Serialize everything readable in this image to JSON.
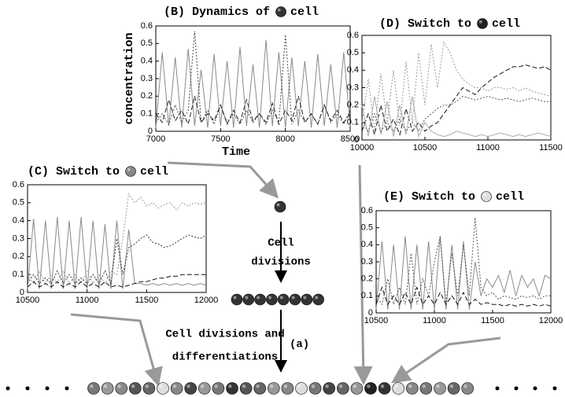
{
  "chart_data": [
    {
      "type": "line",
      "title": [
        "(B) Dynamics of",
        "cell"
      ],
      "ball": "#333",
      "xlabel": "Time",
      "ylabel": "concentration",
      "x": [
        7000,
        7050,
        7100,
        7150,
        7200,
        7250,
        7300,
        7350,
        7400,
        7450,
        7500,
        7550,
        7600,
        7650,
        7700,
        7750,
        7800,
        7850,
        7900,
        7950,
        8000,
        8050,
        8100,
        8150,
        8200,
        8250,
        8300,
        8350,
        8400,
        8450,
        8500
      ],
      "xlim": [
        7000,
        8500
      ],
      "xticks": [
        7000,
        7500,
        8000,
        8500
      ],
      "ylim": [
        0,
        0.6
      ],
      "yticks": [
        0,
        0.1,
        0.2,
        0.3,
        0.4,
        0.5,
        0.6
      ],
      "series": [
        {
          "color": "#8a8a8a",
          "style": "solid",
          "values": [
            0.02,
            0.45,
            0.03,
            0.42,
            0.02,
            0.47,
            0.03,
            0.35,
            0.02,
            0.44,
            0.03,
            0.4,
            0.02,
            0.48,
            0.03,
            0.38,
            0.02,
            0.52,
            0.03,
            0.45,
            0.02,
            0.42,
            0.03,
            0.4,
            0.02,
            0.44,
            0.03,
            0.38,
            0.02,
            0.45,
            0.03
          ]
        },
        {
          "color": "#444",
          "style": "dotted",
          "values": [
            0.05,
            0.1,
            0.04,
            0.15,
            0.05,
            0.12,
            0.57,
            0.05,
            0.12,
            0.04,
            0.15,
            0.05,
            0.1,
            0.04,
            0.12,
            0.05,
            0.1,
            0.04,
            0.12,
            0.05,
            0.55,
            0.04,
            0.12,
            0.05,
            0.1,
            0.04,
            0.15,
            0.05,
            0.1,
            0.04,
            0.12
          ]
        },
        {
          "color": "#222",
          "style": "dashed",
          "values": [
            0.1,
            0.05,
            0.18,
            0.06,
            0.12,
            0.04,
            0.2,
            0.05,
            0.1,
            0.06,
            0.15,
            0.04,
            0.12,
            0.05,
            0.18,
            0.06,
            0.1,
            0.05,
            0.16,
            0.04,
            0.12,
            0.06,
            0.2,
            0.05,
            0.1,
            0.04,
            0.15,
            0.06,
            0.12,
            0.05,
            0.1
          ]
        }
      ]
    },
    {
      "type": "line",
      "title": [
        "(D) Switch to",
        "cell"
      ],
      "ball": "#222",
      "x": [
        10000,
        10050,
        10100,
        10150,
        10200,
        10250,
        10300,
        10350,
        10400,
        10450,
        10500,
        10550,
        10600,
        10650,
        10700,
        10750,
        10800,
        10850,
        10900,
        10950,
        11000,
        11050,
        11100,
        11150,
        11200,
        11250,
        11300,
        11350,
        11400,
        11450,
        11500
      ],
      "xlim": [
        10000,
        11500
      ],
      "xticks": [
        10000,
        10500,
        11000,
        11500
      ],
      "ylim": [
        0,
        0.6
      ],
      "yticks": [
        0,
        0.1,
        0.2,
        0.3,
        0.4,
        0.5,
        0.6
      ],
      "series": [
        {
          "color": "#999",
          "style": "dotted",
          "values": [
            0.1,
            0.35,
            0.05,
            0.38,
            0.1,
            0.4,
            0.08,
            0.45,
            0.1,
            0.5,
            0.2,
            0.55,
            0.3,
            0.56,
            0.5,
            0.4,
            0.35,
            0.32,
            0.3,
            0.3,
            0.28,
            0.3,
            0.3,
            0.29,
            0.3,
            0.28,
            0.3,
            0.28,
            0.27,
            0.26,
            0.25
          ]
        },
        {
          "color": "#111",
          "style": "dashed",
          "values": [
            0.05,
            0.15,
            0.03,
            0.2,
            0.05,
            0.12,
            0.03,
            0.18,
            0.05,
            0.1,
            0.05,
            0.08,
            0.1,
            0.15,
            0.2,
            0.25,
            0.3,
            0.28,
            0.26,
            0.3,
            0.33,
            0.36,
            0.38,
            0.4,
            0.42,
            0.42,
            0.43,
            0.42,
            0.41,
            0.42,
            0.4
          ]
        },
        {
          "color": "#aaa",
          "style": "solid",
          "values": [
            0.2,
            0.02,
            0.25,
            0.03,
            0.22,
            0.02,
            0.2,
            0.03,
            0.25,
            0.02,
            0.1,
            0.05,
            0.03,
            0.02,
            0.03,
            0.05,
            0.04,
            0.03,
            0.02,
            0.03,
            0.02,
            0.03,
            0.04,
            0.03,
            0.02,
            0.03,
            0.02,
            0.03,
            0.04,
            0.03,
            0.02
          ]
        },
        {
          "color": "#555",
          "style": "dotted",
          "values": [
            0.1,
            0.05,
            0.15,
            0.05,
            0.1,
            0.05,
            0.12,
            0.05,
            0.1,
            0.05,
            0.12,
            0.15,
            0.18,
            0.2,
            0.2,
            0.22,
            0.25,
            0.24,
            0.23,
            0.24,
            0.25,
            0.24,
            0.23,
            0.24,
            0.23,
            0.22,
            0.23,
            0.24,
            0.23,
            0.22,
            0.22
          ]
        }
      ]
    },
    {
      "type": "line",
      "title": [
        "(C) Switch to",
        "cell"
      ],
      "ball": "#888",
      "x": [
        10500,
        10550,
        10600,
        10650,
        10700,
        10750,
        10800,
        10850,
        10900,
        10950,
        11000,
        11050,
        11100,
        11150,
        11200,
        11250,
        11300,
        11350,
        11400,
        11450,
        11500,
        11550,
        11600,
        11650,
        11700,
        11750,
        11800,
        11850,
        11900,
        11950,
        12000
      ],
      "xlim": [
        10500,
        12000
      ],
      "xticks": [
        10500,
        11000,
        11500,
        12000
      ],
      "ylim": [
        0,
        0.6
      ],
      "yticks": [
        0,
        0.1,
        0.2,
        0.3,
        0.4,
        0.5,
        0.6
      ],
      "series": [
        {
          "color": "#8a8a8a",
          "style": "solid",
          "values": [
            0.02,
            0.41,
            0.02,
            0.4,
            0.02,
            0.42,
            0.02,
            0.4,
            0.02,
            0.42,
            0.02,
            0.4,
            0.02,
            0.38,
            0.02,
            0.4,
            0.02,
            0.35,
            0.05,
            0.05,
            0.04,
            0.05,
            0.04,
            0.05,
            0.04,
            0.05,
            0.04,
            0.05,
            0.04,
            0.05,
            0.04
          ]
        },
        {
          "color": "#999",
          "style": "dotted",
          "values": [
            0.1,
            0.05,
            0.12,
            0.05,
            0.1,
            0.05,
            0.12,
            0.05,
            0.1,
            0.05,
            0.12,
            0.05,
            0.1,
            0.05,
            0.12,
            0.1,
            0.3,
            0.55,
            0.5,
            0.53,
            0.48,
            0.5,
            0.47,
            0.49,
            0.5,
            0.46,
            0.5,
            0.48,
            0.5,
            0.49,
            0.5
          ]
        },
        {
          "color": "#333",
          "style": "dotted",
          "values": [
            0.05,
            0.1,
            0.05,
            0.08,
            0.05,
            0.12,
            0.05,
            0.1,
            0.05,
            0.08,
            0.05,
            0.1,
            0.05,
            0.12,
            0.05,
            0.3,
            0.1,
            0.25,
            0.27,
            0.3,
            0.32,
            0.28,
            0.27,
            0.25,
            0.26,
            0.28,
            0.3,
            0.32,
            0.31,
            0.3,
            0.32
          ]
        },
        {
          "color": "#111",
          "style": "dashed",
          "values": [
            0.03,
            0.06,
            0.03,
            0.05,
            0.03,
            0.06,
            0.03,
            0.05,
            0.03,
            0.06,
            0.03,
            0.05,
            0.03,
            0.06,
            0.03,
            0.04,
            0.03,
            0.04,
            0.05,
            0.06,
            0.06,
            0.07,
            0.08,
            0.08,
            0.09,
            0.09,
            0.1,
            0.1,
            0.1,
            0.1,
            0.1
          ]
        }
      ]
    },
    {
      "type": "line",
      "title": [
        "(E) Switch to",
        "cell"
      ],
      "ball": "#ddd",
      "x": [
        10500,
        10550,
        10600,
        10650,
        10700,
        10750,
        10800,
        10850,
        10900,
        10950,
        11000,
        11050,
        11100,
        11150,
        11200,
        11250,
        11300,
        11350,
        11400,
        11450,
        11500,
        11550,
        11600,
        11650,
        11700,
        11750,
        11800,
        11850,
        11900,
        11950,
        12000
      ],
      "xlim": [
        10500,
        12000
      ],
      "xticks": [
        10500,
        11000,
        11500,
        12000
      ],
      "ylim": [
        0,
        0.6
      ],
      "yticks": [
        0,
        0.1,
        0.2,
        0.3,
        0.4,
        0.5,
        0.6
      ],
      "series": [
        {
          "color": "#8a8a8a",
          "style": "solid",
          "values": [
            0.02,
            0.42,
            0.02,
            0.4,
            0.02,
            0.45,
            0.02,
            0.4,
            0.02,
            0.42,
            0.02,
            0.45,
            0.02,
            0.4,
            0.02,
            0.42,
            0.02,
            0.3,
            0.1,
            0.2,
            0.15,
            0.22,
            0.12,
            0.25,
            0.1,
            0.22,
            0.15,
            0.2,
            0.1,
            0.22,
            0.2
          ]
        },
        {
          "color": "#555",
          "style": "dotted",
          "values": [
            0.1,
            0.05,
            0.2,
            0.05,
            0.15,
            0.05,
            0.35,
            0.05,
            0.2,
            0.1,
            0.3,
            0.45,
            0.05,
            0.35,
            0.1,
            0.4,
            0.1,
            0.56,
            0.15,
            0.1,
            0.12,
            0.08,
            0.1,
            0.09,
            0.08,
            0.1,
            0.09,
            0.1,
            0.08,
            0.1,
            0.1
          ]
        },
        {
          "color": "#111",
          "style": "dashed",
          "values": [
            0.05,
            0.15,
            0.05,
            0.1,
            0.05,
            0.12,
            0.05,
            0.15,
            0.05,
            0.1,
            0.05,
            0.12,
            0.05,
            0.1,
            0.05,
            0.12,
            0.05,
            0.08,
            0.05,
            0.06,
            0.05,
            0.05,
            0.04,
            0.05,
            0.04,
            0.05,
            0.04,
            0.05,
            0.04,
            0.05,
            0.04
          ]
        }
      ]
    }
  ],
  "labels": {
    "cell_divisions": [
      "Cell",
      "divisions"
    ],
    "differentiations": [
      "Cell divisions and",
      "differentiations"
    ],
    "panel": "(a)"
  }
}
